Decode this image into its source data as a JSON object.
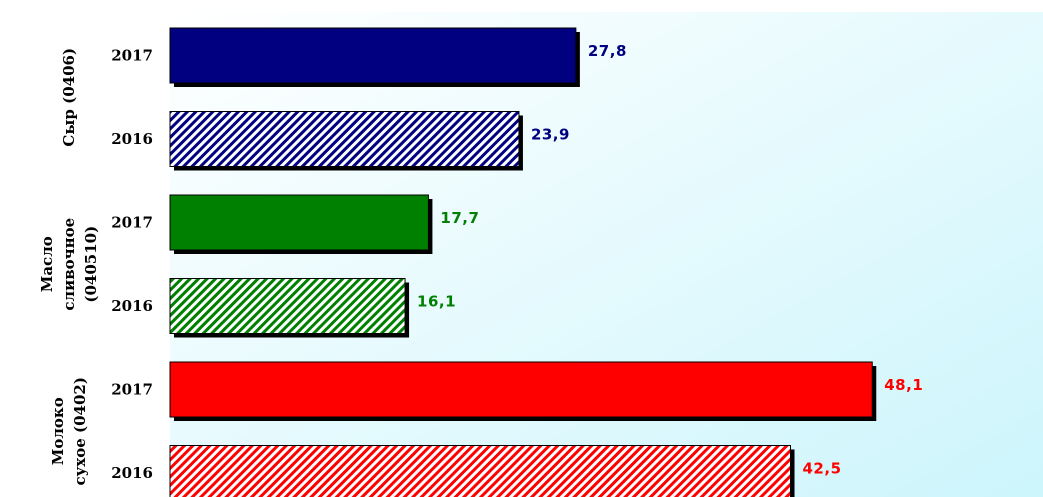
{
  "chart_data": {
    "type": "bar",
    "orientation": "horizontal",
    "title": "",
    "xlabel": "",
    "ylabel": "",
    "xlim": [
      0,
      50
    ],
    "grid": false,
    "legend": "none",
    "background": {
      "gradient_from": "#ffffff",
      "gradient_to": "#ccf5fc"
    },
    "groups": [
      {
        "name": "Сыр (0406)",
        "name_lines": [
          "Сыр (0406)"
        ],
        "color": "#000080",
        "bars": [
          {
            "year": "2017",
            "value": 27.8,
            "label": "27,8",
            "pattern": "solid"
          },
          {
            "year": "2016",
            "value": 23.9,
            "label": "23,9",
            "pattern": "hatched"
          }
        ]
      },
      {
        "name": "Масло сливочное (040510)",
        "name_lines": [
          "Масло",
          "сливочное",
          "(040510)"
        ],
        "color": "#008000",
        "bars": [
          {
            "year": "2017",
            "value": 17.7,
            "label": "17,7",
            "pattern": "solid"
          },
          {
            "year": "2016",
            "value": 16.1,
            "label": "16,1",
            "pattern": "hatched"
          }
        ]
      },
      {
        "name": "Молоко сухое (0402)",
        "name_lines": [
          "Молоко",
          "сухое (0402)"
        ],
        "color": "#ff0000",
        "bars": [
          {
            "year": "2017",
            "value": 48.1,
            "label": "48,1",
            "pattern": "solid"
          },
          {
            "year": "2016",
            "value": 42.5,
            "label": "42,5",
            "pattern": "hatched"
          }
        ]
      }
    ]
  }
}
